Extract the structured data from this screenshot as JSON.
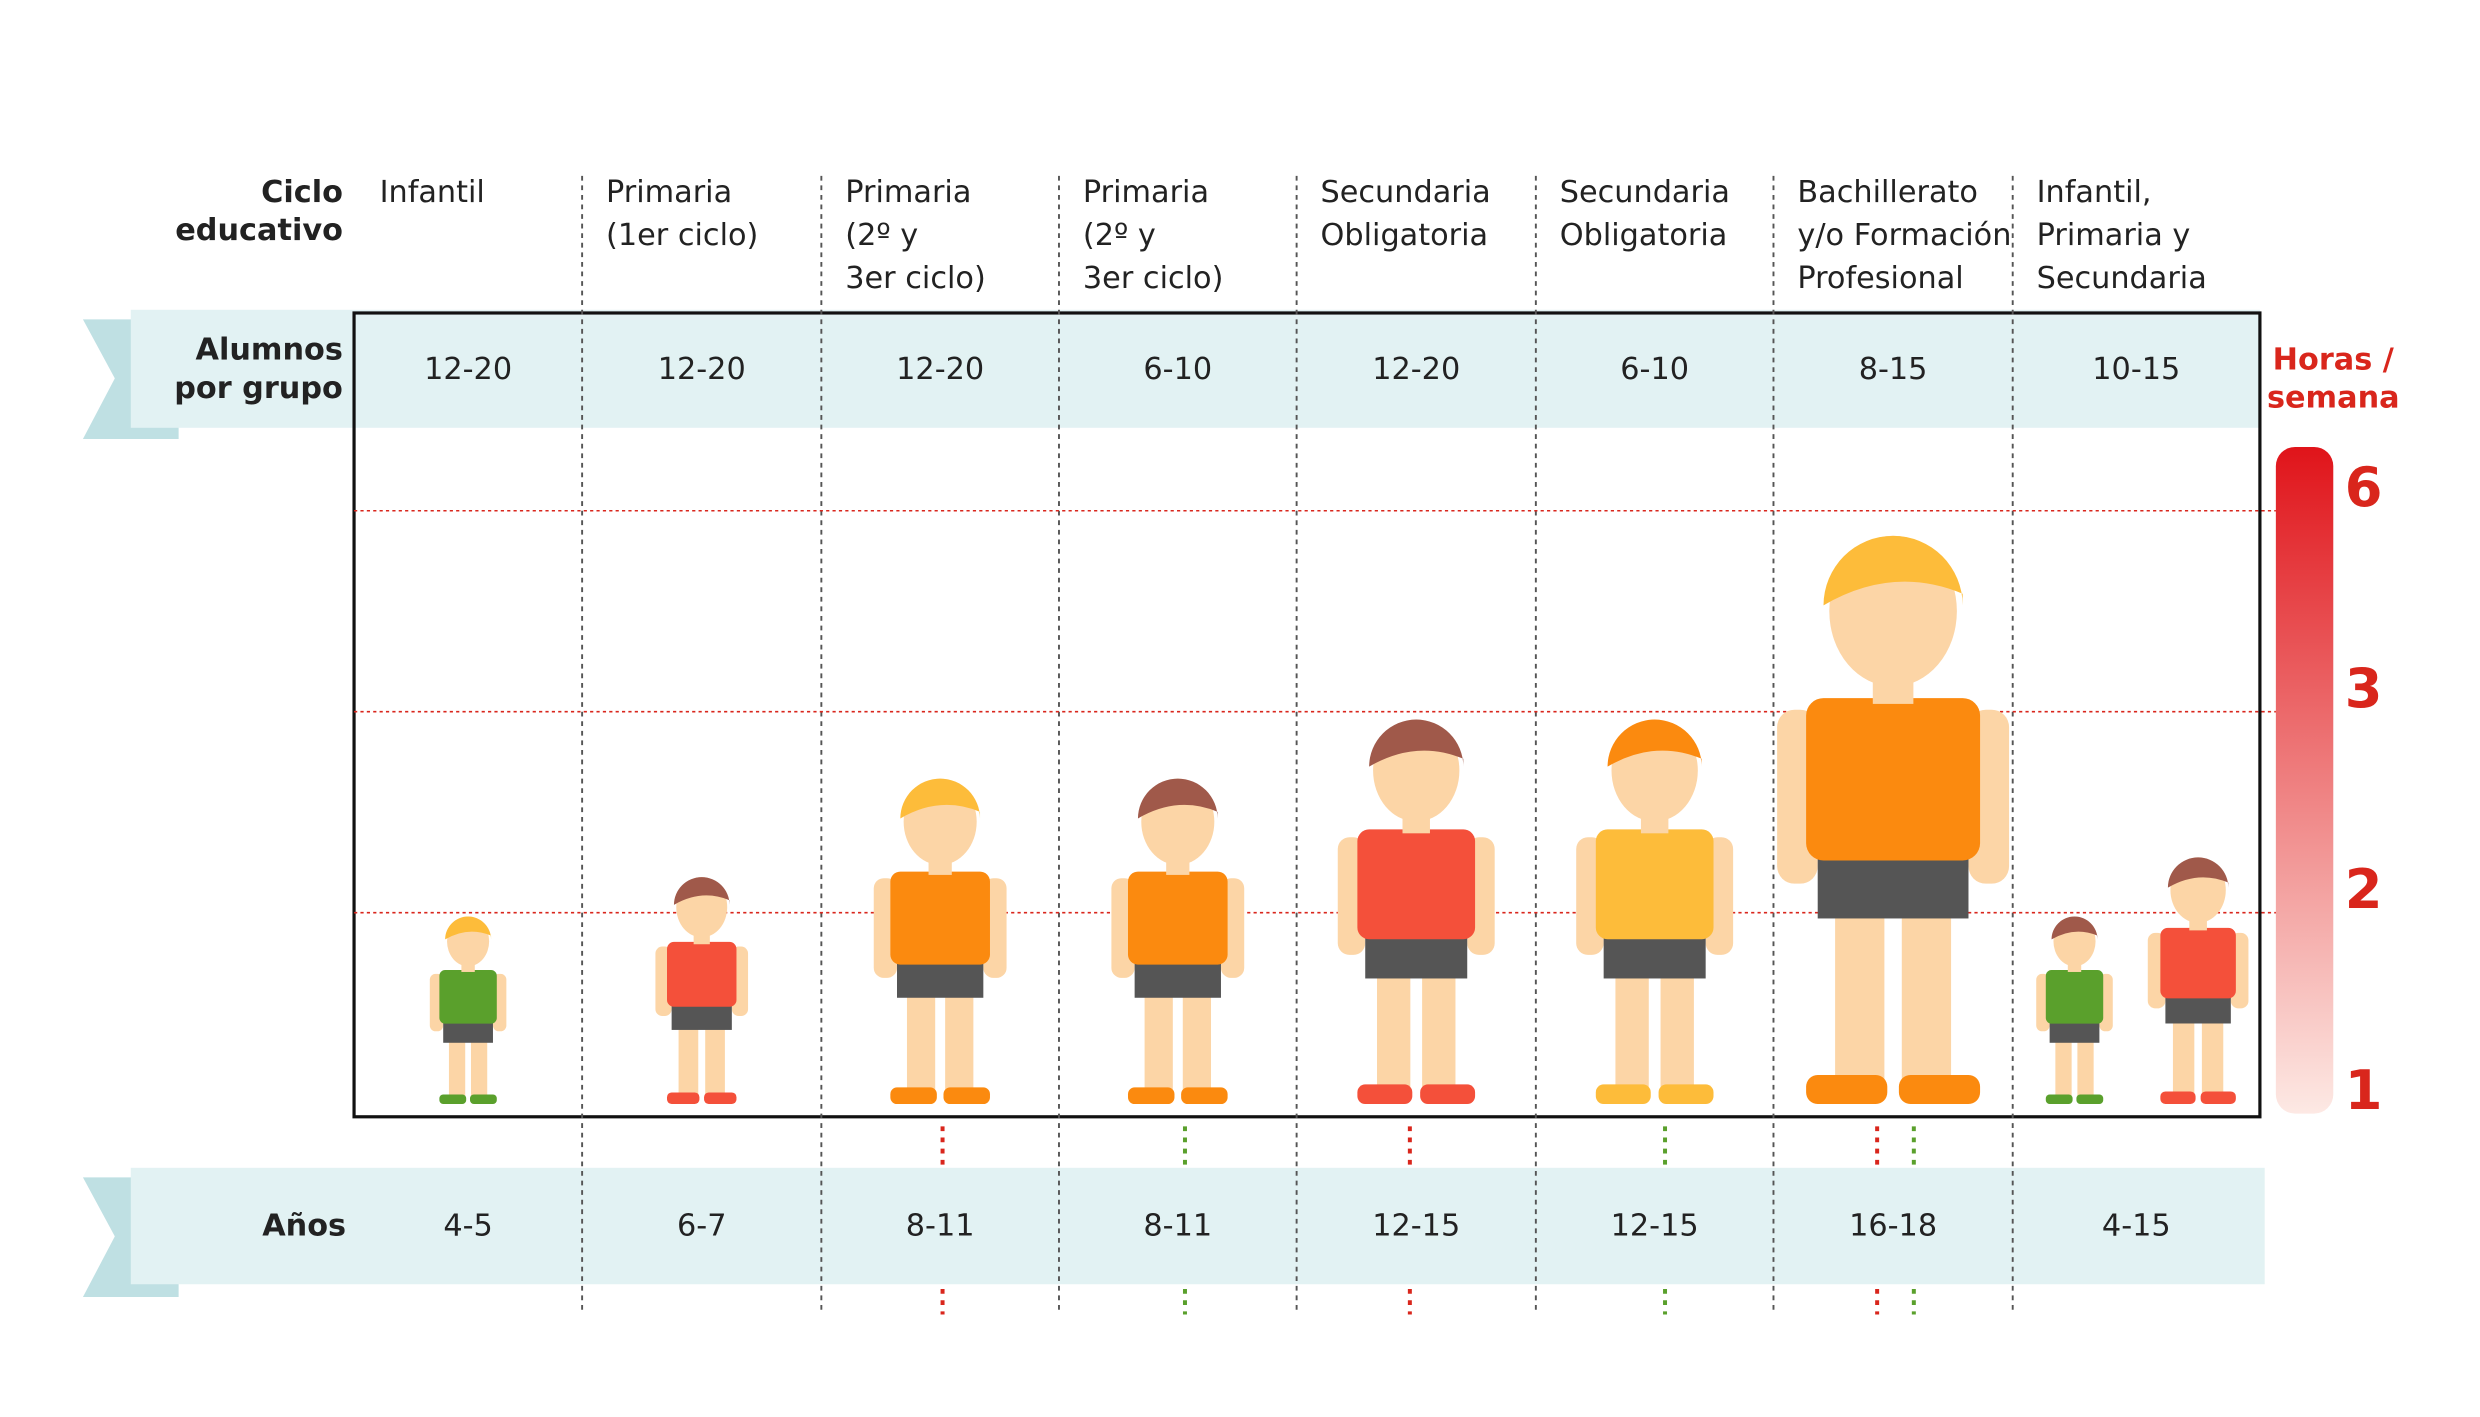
{
  "chart_data": {
    "type": "pictogram",
    "row_labels": {
      "cycle": [
        "Ciclo",
        "educativo"
      ],
      "group": [
        "Alumnos",
        "por grupo"
      ],
      "ages": "Años"
    },
    "categories": [
      [
        "Infantil"
      ],
      [
        "Primaria",
        "(1er ciclo)"
      ],
      [
        "Primaria",
        "(2º y",
        "3er ciclo)"
      ],
      [
        "Primaria",
        "(2º y",
        "3er ciclo)"
      ],
      [
        "Secundaria",
        "Obligatoria"
      ],
      [
        "Secundaria",
        "Obligatoria"
      ],
      [
        "Bachillerato",
        "y/o Formación",
        "Profesional"
      ],
      [
        "Infantil,",
        "Primaria y",
        "Secundaria"
      ]
    ],
    "group_sizes": [
      "12-20",
      "12-20",
      "12-20",
      "6-10",
      "12-20",
      "6-10",
      "8-15",
      "10-15"
    ],
    "ages": [
      "4-5",
      "6-7",
      "8-11",
      "8-11",
      "12-15",
      "12-15",
      "16-18",
      "4-15"
    ],
    "y_label": [
      "Horas /",
      "semana"
    ],
    "ylim": [
      1,
      6
    ],
    "yticks": [
      1,
      2,
      3,
      6
    ],
    "grid": true,
    "values": [
      [
        2
      ],
      [
        2.2
      ],
      [
        2.7
      ],
      [
        2.7
      ],
      [
        3
      ],
      [
        3
      ],
      [
        5.8
      ],
      [
        2,
        2.3
      ]
    ],
    "colors": [
      [
        "#5aa02c"
      ],
      [
        "#f4503a"
      ],
      [
        "#fb8a0f"
      ],
      [
        "#fb8a0f"
      ],
      [
        "#f4503a"
      ],
      [
        "#fdbc3a"
      ],
      [
        "#fb8a0f"
      ],
      [
        "#5aa02c",
        "#f4503a"
      ]
    ],
    "hair_colors": [
      [
        "#fdbc3a"
      ],
      [
        "#a0594a"
      ],
      [
        "#fdbc3a"
      ],
      [
        "#a0594a"
      ],
      [
        "#a0594a"
      ],
      [
        "#fb8a0f"
      ],
      [
        "#fdbc3a"
      ],
      [
        "#a0594a",
        "#a0594a"
      ]
    ]
  }
}
